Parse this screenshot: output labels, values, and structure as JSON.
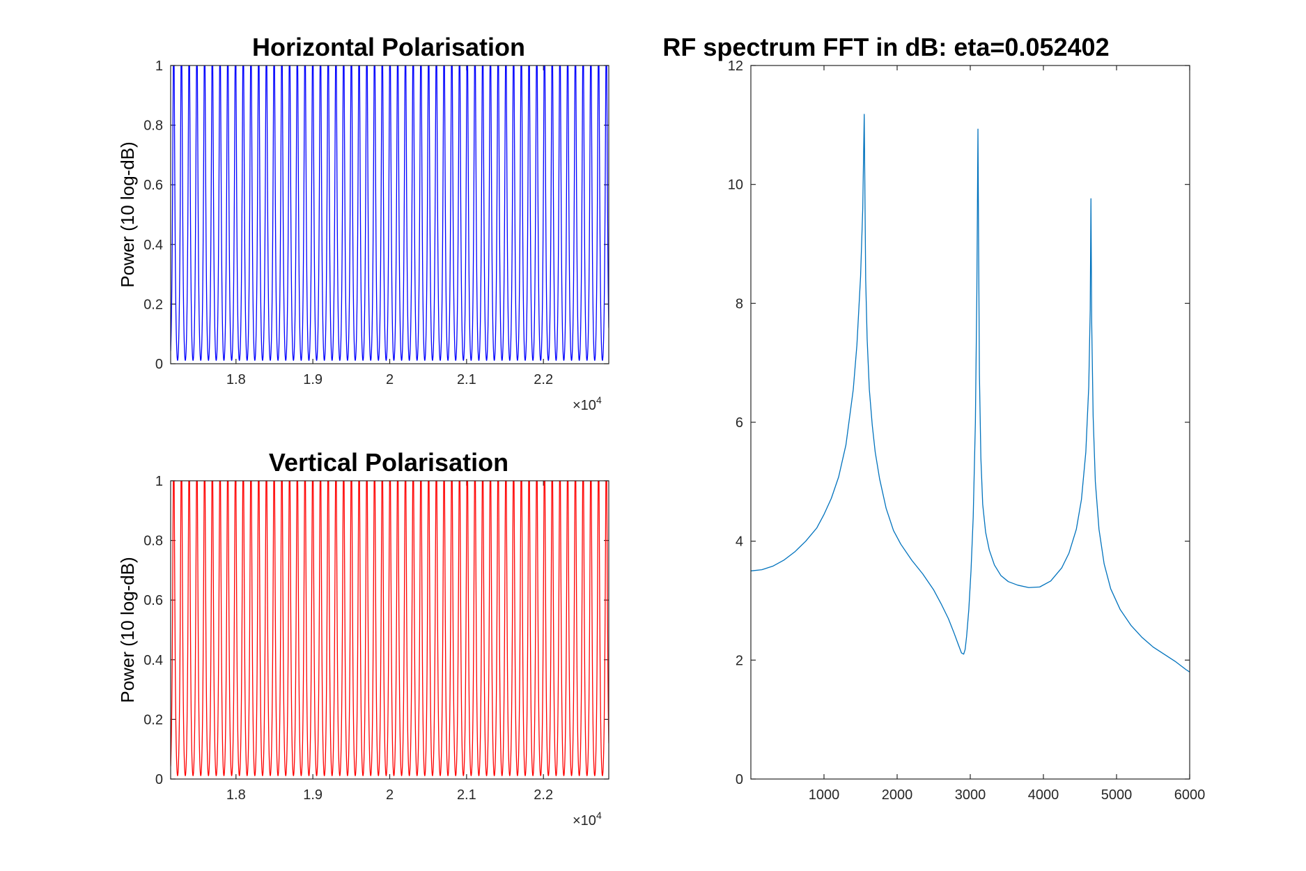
{
  "chart_data": [
    {
      "id": "horizontal",
      "type": "line",
      "title": "Horizontal Polarisation",
      "ylabel": "Power (10 log-dB)",
      "xlabel": "",
      "xlim": [
        17150,
        22850
      ],
      "ylim": [
        0,
        1
      ],
      "x_ticks": [
        18000,
        19000,
        20000,
        21000,
        22000
      ],
      "x_tick_labels": [
        "1.8",
        "1.9",
        "2",
        "2.1",
        "2.2"
      ],
      "y_ticks": [
        0,
        0.2,
        0.4,
        0.6,
        0.8,
        1
      ],
      "y_tick_labels": [
        "0",
        "0.2",
        "0.4",
        "0.6",
        "0.8",
        "1"
      ],
      "x_exponent": {
        "base": "×10",
        "power": "4"
      },
      "grid": false,
      "color": "#0000ff",
      "series": [
        {
          "pattern": "periodic-fringe",
          "period": 100.5,
          "phase": 17190,
          "min": 0.01,
          "max": 1.0,
          "finesse": 0.6
        }
      ]
    },
    {
      "id": "vertical",
      "type": "line",
      "title": "Vertical Polarisation",
      "ylabel": "Power (10 log-dB)",
      "xlabel": "",
      "xlim": [
        17150,
        22850
      ],
      "ylim": [
        0,
        1
      ],
      "x_ticks": [
        18000,
        19000,
        20000,
        21000,
        22000
      ],
      "x_tick_labels": [
        "1.8",
        "1.9",
        "2",
        "2.1",
        "2.2"
      ],
      "y_ticks": [
        0,
        0.2,
        0.4,
        0.6,
        0.8,
        1
      ],
      "y_tick_labels": [
        "0",
        "0.2",
        "0.4",
        "0.6",
        "0.8",
        "1"
      ],
      "x_exponent": {
        "base": "×10",
        "power": "4"
      },
      "grid": false,
      "color": "#ff0000",
      "series": [
        {
          "pattern": "periodic-fringe",
          "period": 100.5,
          "phase": 17190,
          "min": 0.01,
          "max": 1.0,
          "finesse": 0.6
        }
      ]
    },
    {
      "id": "rf-spectrum",
      "type": "line",
      "title": "RF spectrum FFT in dB: eta=0.052402",
      "ylabel": "",
      "xlabel": "",
      "xlim": [
        0,
        6000
      ],
      "ylim": [
        0,
        12
      ],
      "x_ticks": [
        1000,
        2000,
        3000,
        4000,
        5000,
        6000
      ],
      "x_tick_labels": [
        "1000",
        "2000",
        "3000",
        "4000",
        "5000",
        "6000"
      ],
      "y_ticks": [
        0,
        2,
        4,
        6,
        8,
        10,
        12
      ],
      "y_tick_labels": [
        "0",
        "2",
        "4",
        "6",
        "8",
        "10",
        "12"
      ],
      "grid": false,
      "color": "#0072bd",
      "series": [
        {
          "x": [
            0,
            150,
            300,
            450,
            600,
            750,
            900,
            1000,
            1100,
            1200,
            1300,
            1400,
            1450,
            1500,
            1530,
            1550,
            1560,
            1570,
            1590,
            1620,
            1660,
            1700,
            1760,
            1850,
            1950,
            2050,
            2200,
            2350,
            2500,
            2600,
            2700,
            2780,
            2840,
            2880,
            2910,
            2930,
            2950,
            2980,
            3010,
            3040,
            3070,
            3090,
            3105,
            3115,
            3125,
            3145,
            3170,
            3210,
            3260,
            3330,
            3420,
            3520,
            3650,
            3800,
            3950,
            4100,
            4250,
            4350,
            4450,
            4520,
            4580,
            4620,
            4640,
            4650,
            4660,
            4680,
            4710,
            4760,
            4830,
            4920,
            5050,
            5200,
            5350,
            5500,
            5650,
            5800,
            5950,
            6000
          ],
          "y": [
            3.5,
            3.52,
            3.58,
            3.68,
            3.82,
            4.0,
            4.22,
            4.45,
            4.72,
            5.08,
            5.62,
            6.55,
            7.3,
            8.45,
            9.6,
            11.18,
            9.8,
            8.4,
            7.4,
            6.55,
            5.95,
            5.5,
            5.05,
            4.55,
            4.18,
            3.95,
            3.68,
            3.45,
            3.18,
            2.95,
            2.7,
            2.45,
            2.25,
            2.12,
            2.1,
            2.18,
            2.4,
            2.85,
            3.5,
            4.4,
            6.0,
            8.2,
            10.93,
            8.8,
            6.8,
            5.4,
            4.62,
            4.15,
            3.85,
            3.6,
            3.42,
            3.32,
            3.26,
            3.22,
            3.23,
            3.33,
            3.55,
            3.8,
            4.2,
            4.7,
            5.5,
            6.6,
            7.9,
            9.76,
            7.7,
            6.1,
            5.0,
            4.2,
            3.62,
            3.2,
            2.85,
            2.58,
            2.38,
            2.22,
            2.1,
            1.98,
            1.84,
            1.8
          ]
        }
      ]
    }
  ]
}
